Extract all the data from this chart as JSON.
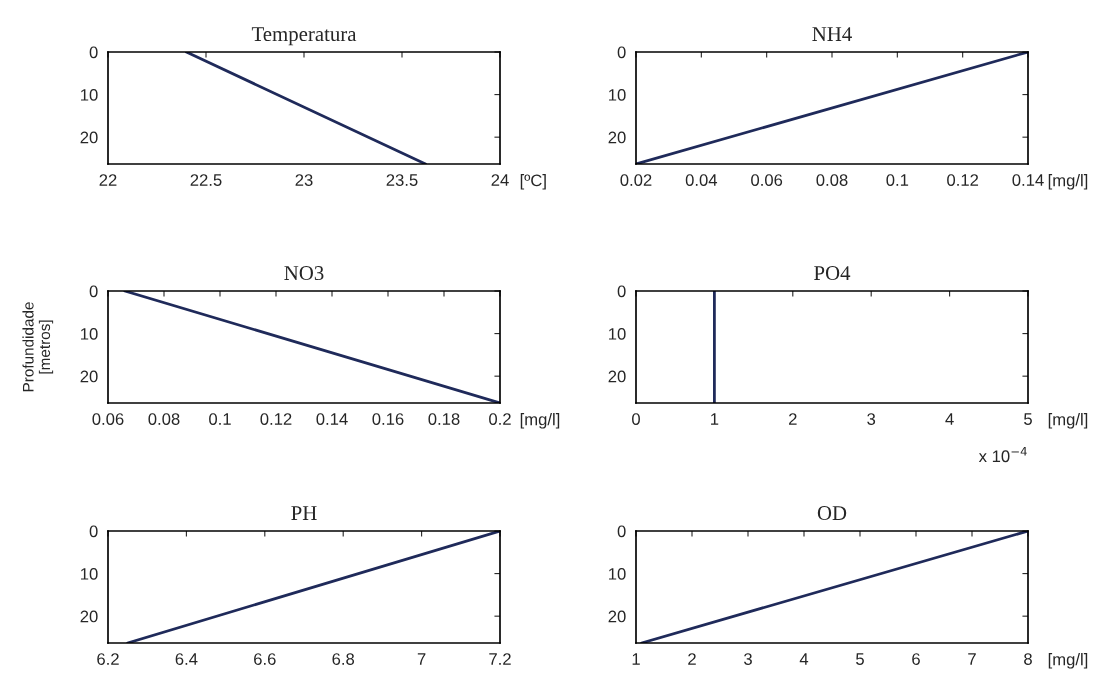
{
  "chart_data": [
    {
      "type": "line",
      "title": "Temperatura",
      "xlabel": "[ºC]",
      "xlim": [
        22,
        24
      ],
      "xticks": [
        22,
        22.5,
        23,
        23.5,
        24
      ],
      "ylim": [
        26.3,
        0
      ],
      "yticks": [
        0,
        10,
        20
      ],
      "grid": false,
      "series": [
        {
          "color": "#1f2a5a",
          "x": [
            22.4,
            23.62
          ],
          "values": [
            0,
            26.3
          ]
        }
      ]
    },
    {
      "type": "line",
      "title": "NH4",
      "xlabel": "[mg/l]",
      "xlim": [
        0.02,
        0.14
      ],
      "xticks": [
        0.02,
        0.04,
        0.06,
        0.08,
        0.1,
        0.12,
        0.14
      ],
      "ylim": [
        26.3,
        0
      ],
      "yticks": [
        0,
        10,
        20
      ],
      "grid": false,
      "series": [
        {
          "color": "#1f2a5a",
          "x": [
            0.14,
            0.02
          ],
          "values": [
            0,
            26.3
          ]
        }
      ]
    },
    {
      "type": "line",
      "title": "NO3",
      "xlabel": "[mg/l]",
      "ylabel": "Profundidade\n[metros]",
      "xlim": [
        0.06,
        0.2
      ],
      "xticks": [
        0.06,
        0.08,
        0.1,
        0.12,
        0.14,
        0.16,
        0.18,
        0.2
      ],
      "ylim": [
        26.3,
        0
      ],
      "yticks": [
        0,
        10,
        20
      ],
      "grid": false,
      "series": [
        {
          "color": "#1f2a5a",
          "x": [
            0.066,
            0.2
          ],
          "values": [
            0,
            26.3
          ]
        }
      ]
    },
    {
      "type": "line",
      "title": "PO4",
      "xlabel": "[mg/l]",
      "annotations": [
        "x 10$^{−4}$"
      ],
      "xlim": [
        0,
        5
      ],
      "xticks": [
        0,
        1,
        2,
        3,
        4,
        5
      ],
      "ylim": [
        26.3,
        0
      ],
      "yticks": [
        0,
        10,
        20
      ],
      "grid": false,
      "series": [
        {
          "color": "#1f2a5a",
          "x": [
            1,
            1
          ],
          "values": [
            0,
            26.3
          ]
        }
      ]
    },
    {
      "type": "line",
      "title": "PH",
      "xlim": [
        6.2,
        7.2
      ],
      "xticks": [
        6.2,
        6.4,
        6.6,
        6.8,
        7,
        7.2
      ],
      "ylim": [
        26.3,
        0
      ],
      "yticks": [
        0,
        10,
        20
      ],
      "grid": false,
      "series": [
        {
          "color": "#1f2a5a",
          "x": [
            7.2,
            6.25
          ],
          "values": [
            0,
            26.3
          ]
        }
      ]
    },
    {
      "type": "line",
      "title": "OD",
      "xlabel": "[mg/l]",
      "xlim": [
        1,
        8
      ],
      "xticks": [
        1,
        2,
        3,
        4,
        5,
        6,
        7,
        8
      ],
      "ylim": [
        26.3,
        0
      ],
      "yticks": [
        0,
        10,
        20
      ],
      "grid": false,
      "series": [
        {
          "color": "#1f2a5a",
          "x": [
            8,
            1.1
          ],
          "values": [
            0,
            26.3
          ]
        }
      ]
    }
  ]
}
